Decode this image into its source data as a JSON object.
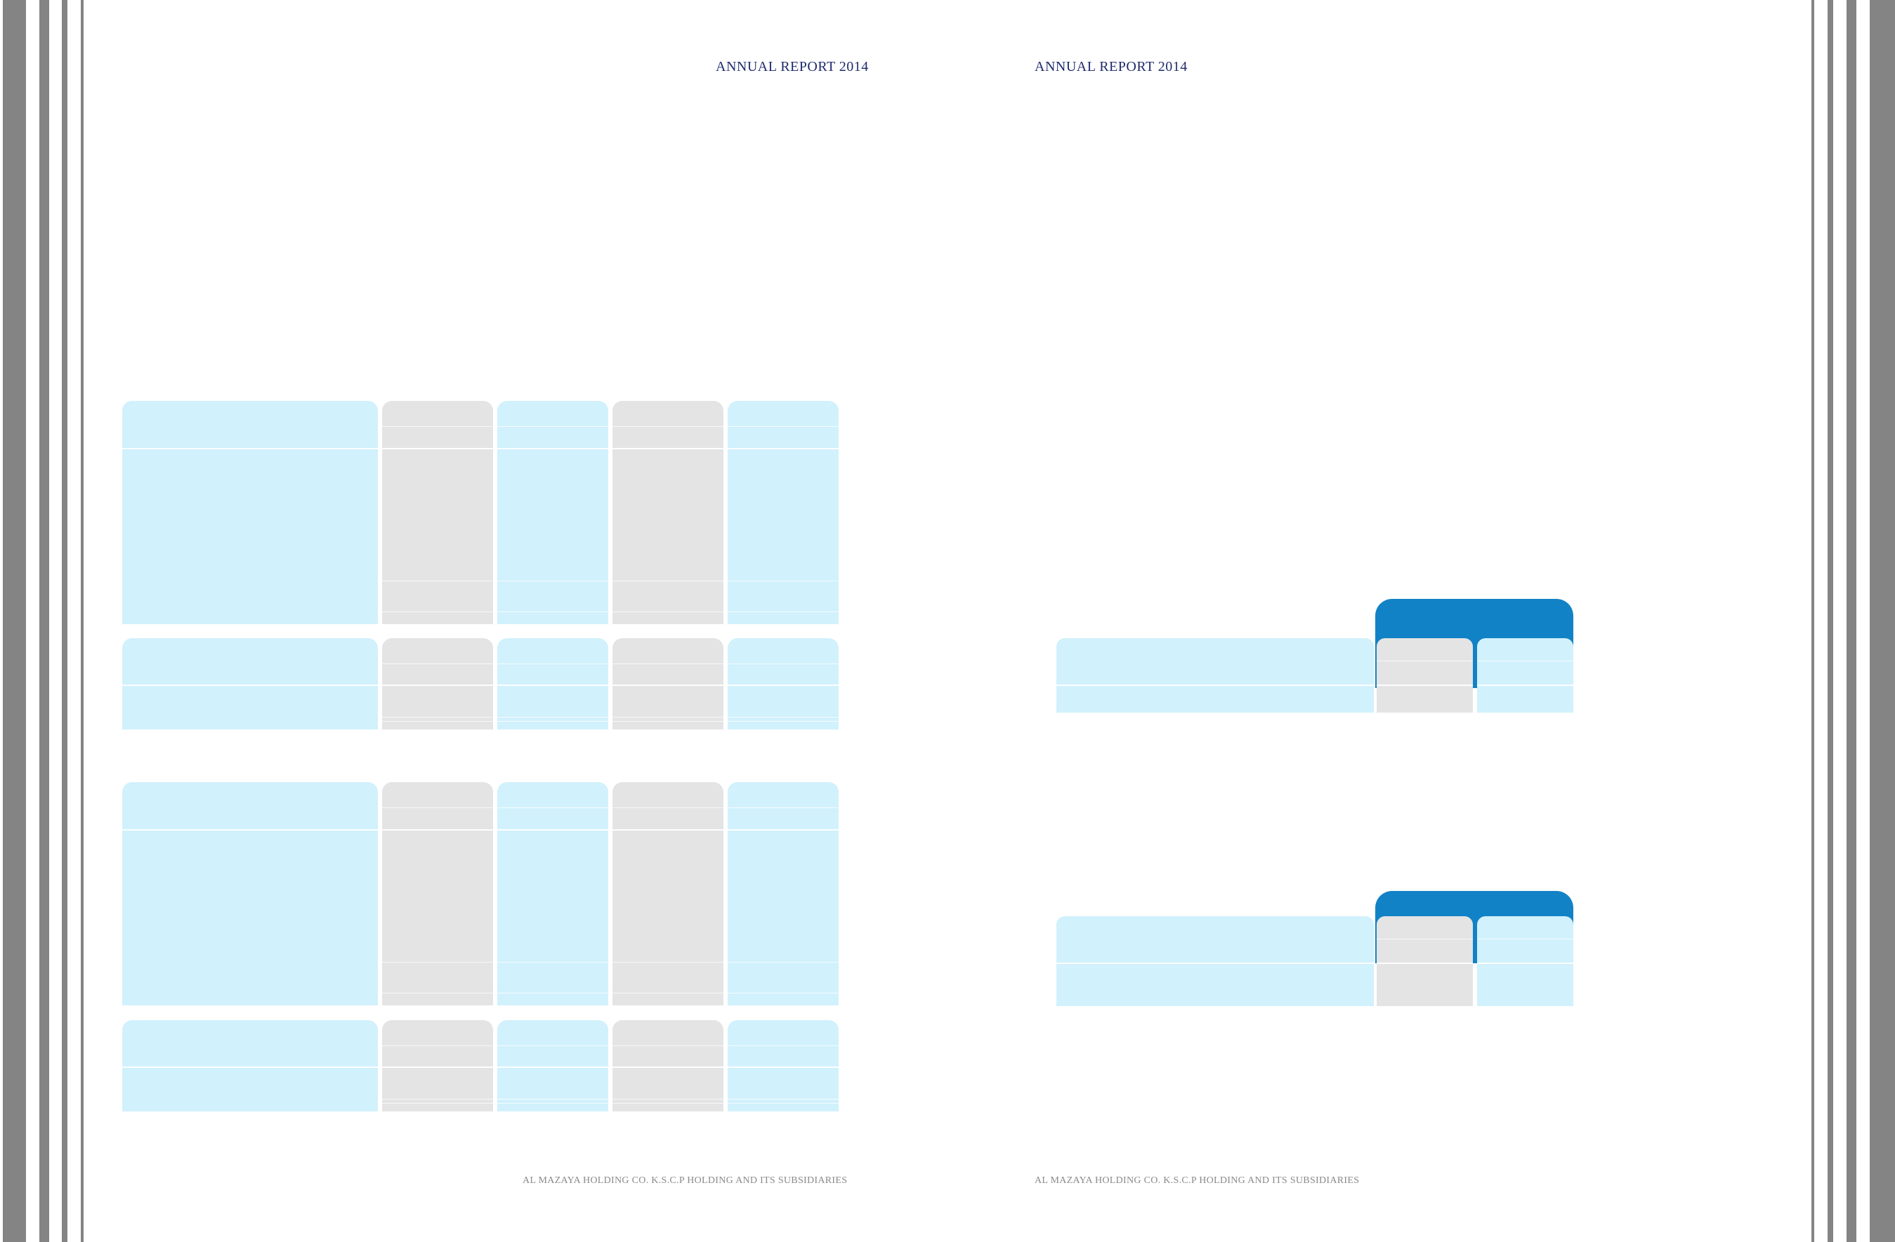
{
  "page": {
    "header_left": "ANNUAL REPORT 2014",
    "header_right": "ANNUAL REPORT 2014",
    "footer_left": "AL MAZAYA HOLDING CO. K.S.C.P HOLDING AND ITS SUBSIDIARIES",
    "footer_right": "AL MAZAYA HOLDING CO. K.S.C.P HOLDING AND ITS SUBSIDIARIES"
  },
  "colors": {
    "table_blue": "#d1f1fc",
    "table_grey": "#e4e4e4",
    "header_band": "#1282c6",
    "header_text": "#1f2b6e",
    "footer_text": "#8a8a8a",
    "edge_bars": "#848484"
  }
}
